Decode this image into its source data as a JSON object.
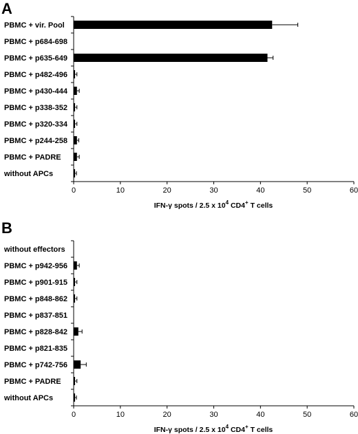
{
  "chart_data": [
    {
      "type": "bar",
      "orientation": "horizontal",
      "panel_label": "A",
      "categories": [
        "PBMC + vir. Pool",
        "PBMC + p684-698",
        "PBMC + p635-649",
        "PBMC + p482-496",
        "PBMC + p430-444",
        "PBMC + p338-352",
        "PBMC + p320-334",
        "PBMC + p244-258",
        "PBMC + PADRE",
        "without APCs"
      ],
      "values": [
        42.5,
        0,
        41.5,
        0.3,
        0.7,
        0.3,
        0.3,
        0.7,
        0.7,
        0.3
      ],
      "errors": [
        5.5,
        0,
        1.2,
        0.4,
        0.5,
        0.4,
        0.4,
        0.4,
        0.5,
        0.3
      ],
      "xlabel_main": "IFN-γ spots / 2.5 x 10",
      "xlabel_sup": "4",
      "xlabel_mid": " CD4",
      "xlabel_sup2": "+",
      "xlabel_end": " T cells",
      "xlim": [
        0,
        60
      ],
      "xticks": [
        "0",
        "10",
        "20",
        "30",
        "40",
        "50",
        "60"
      ],
      "grid": false
    },
    {
      "type": "bar",
      "orientation": "horizontal",
      "panel_label": "B",
      "categories": [
        "without effectors",
        "PBMC + p942-956",
        "PBMC + p901-915",
        "PBMC + p848-862",
        "PBMC + p837-851",
        "PBMC + p828-842",
        "PBMC + p821-835",
        "PBMC + p742-756",
        "PBMC + PADRE",
        "without APCs"
      ],
      "values": [
        0,
        0.7,
        0.3,
        0.3,
        0,
        1.0,
        0,
        1.5,
        0.3,
        0.3
      ],
      "errors": [
        0,
        0.5,
        0.4,
        0.4,
        0,
        0.8,
        0,
        1.2,
        0.4,
        0.3
      ],
      "xlabel_main": "IFN-γ spots / 2.5 x 10",
      "xlabel_sup": "4",
      "xlabel_mid": " CD4",
      "xlabel_sup2": "+",
      "xlabel_end": " T cells",
      "xlim": [
        0,
        60
      ],
      "xticks": [
        "0",
        "10",
        "20",
        "30",
        "40",
        "50",
        "60"
      ],
      "grid": false
    }
  ]
}
